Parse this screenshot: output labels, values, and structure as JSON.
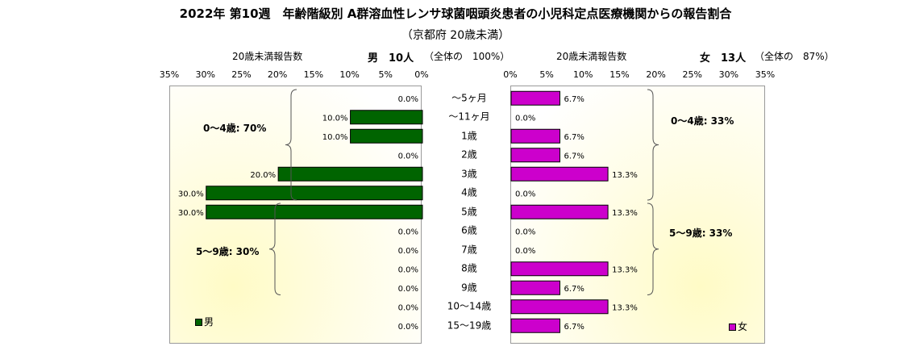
{
  "chart_data": {
    "type": "bar",
    "title": "2022年 第10週　年齢階級別 A群溶血性レンサ球菌咽頭炎患者の小児科定点医療機関からの報告割合",
    "subtitle": "（京都府 20歳未満）",
    "categories": [
      "～5ヶ月",
      "～11ヶ月",
      "1歳",
      "2歳",
      "3歳",
      "4歳",
      "5歳",
      "6歳",
      "7歳",
      "8歳",
      "9歳",
      "10～14歳",
      "15～19歳"
    ],
    "x_ticks": [
      "0%",
      "5%",
      "10%",
      "15%",
      "20%",
      "25%",
      "30%",
      "35%"
    ],
    "xlim": [
      0,
      35
    ],
    "series": [
      {
        "name": "男",
        "color": "#006400",
        "values": [
          0.0,
          10.0,
          10.0,
          0.0,
          20.0,
          30.0,
          30.0,
          0.0,
          0.0,
          0.0,
          0.0,
          0.0,
          0.0
        ],
        "labels": [
          "0.0%",
          "10.0%",
          "10.0%",
          "0.0%",
          "20.0%",
          "30.0%",
          "30.0%",
          "0.0%",
          "0.0%",
          "0.0%",
          "0.0%",
          "0.0%",
          "0.0%"
        ],
        "header": {
          "caption": "20歳未満報告数",
          "main": "男　10人",
          "note": "（全体の　100%）"
        },
        "groups": [
          {
            "label": "0～4歳: 70%",
            "from": 0,
            "to": 5
          },
          {
            "label": "5～9歳: 30%",
            "from": 6,
            "to": 10
          }
        ]
      },
      {
        "name": "女",
        "color": "#cc00cc",
        "values": [
          6.7,
          0.0,
          6.7,
          6.7,
          13.3,
          0.0,
          13.3,
          0.0,
          0.0,
          13.3,
          6.7,
          13.3,
          6.7
        ],
        "labels": [
          "6.7%",
          "0.0%",
          "6.7%",
          "6.7%",
          "13.3%",
          "0.0%",
          "13.3%",
          "0.0%",
          "0.0%",
          "13.3%",
          "6.7%",
          "13.3%",
          "6.7%"
        ],
        "header": {
          "caption": "20歳未満報告数",
          "main": "女　13人",
          "note": "（全体の　87%）"
        },
        "groups": [
          {
            "label": "0～4歳: 33%",
            "from": 0,
            "to": 5
          },
          {
            "label": "5～9歳: 33%",
            "from": 6,
            "to": 10
          }
        ]
      }
    ],
    "legend": "bottom-inside",
    "grid": false
  }
}
